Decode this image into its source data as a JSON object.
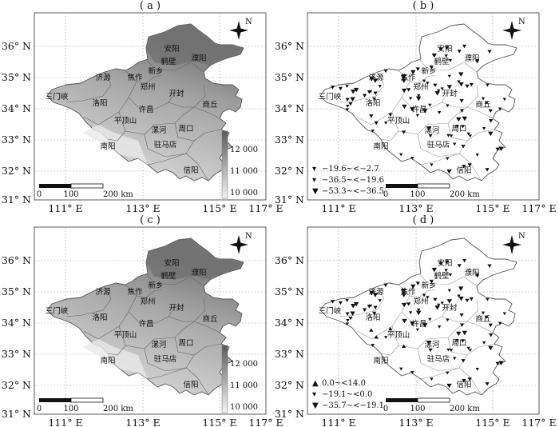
{
  "panels": [
    {
      "id": "a",
      "title": "( a )",
      "kind": "elevation"
    },
    {
      "id": "b",
      "title": "( b )",
      "kind": "points"
    },
    {
      "id": "c",
      "title": "( c )",
      "kind": "elevation"
    },
    {
      "id": "d",
      "title": "( d )",
      "kind": "points"
    }
  ],
  "axes": {
    "lat_labels": [
      "36° N",
      "35° N",
      "34° N",
      "33° N",
      "32° N",
      "31° N"
    ],
    "lon_labels": [
      "111° E",
      "113° E",
      "115° E",
      "117° E"
    ]
  },
  "cities": [
    "安阳",
    "鹤壁",
    "濮阳",
    "新乡",
    "济源",
    "焦作",
    "郑州",
    "开封",
    "三门峡",
    "洛阳",
    "商丘",
    "许昌",
    "平顶山",
    "漯河",
    "周口",
    "南阳",
    "驻马店",
    "信阳"
  ],
  "north": "N",
  "scalebar": {
    "t0": "0",
    "t1": "100",
    "t2": "200 km"
  },
  "colorbar": {
    "ticks": [
      "12 000",
      "11 000",
      "10 000"
    ]
  },
  "legend_b": [
    {
      "symbol": "▾",
      "text": "−19.6~<−2.7"
    },
    {
      "symbol": "▾",
      "text": "−36.5~<−19.6"
    },
    {
      "symbol": "▼",
      "text": "−53.3~<−36.5"
    }
  ],
  "legend_d": [
    {
      "symbol": "▲",
      "text": "0.0~<14.0"
    },
    {
      "symbol": "▾",
      "text": "−19.1~<0.0"
    },
    {
      "symbol": "▼",
      "text": "−35.7~<−19.1"
    }
  ]
}
